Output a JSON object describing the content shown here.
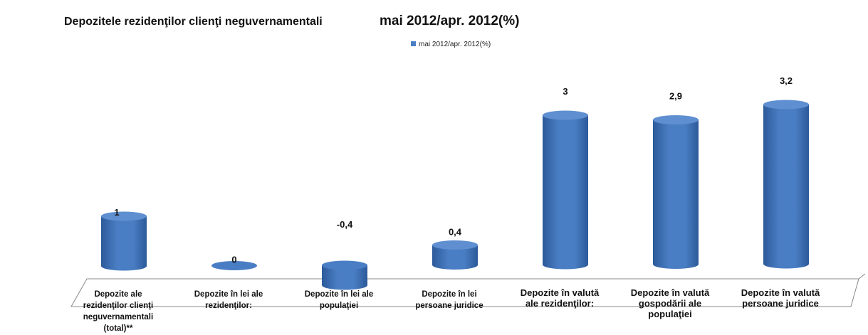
{
  "colors": {
    "bar_fill": "#4a7ec4",
    "bar_dark": "#2c5a9a",
    "bar_top": "#5f8fd0",
    "floor_line": "#888888"
  },
  "chart_data": {
    "type": "bar",
    "title": "Depozitele rezidenţilor clienţi neguvernamentali",
    "subtitle": "mai 2012/apr. 2012(%)",
    "legend_position": "top-center",
    "grid": false,
    "ylim": [
      -0.5,
      3.5
    ],
    "categories": [
      "Depozite ale rezidenţilor clienţi neguvernamentali (total)**",
      "Depozite în lei ale rezidenţilor:",
      "Depozite în lei ale populaţiei",
      "Depozite în lei persoane juridice",
      "Depozite în valută ale rezidenţilor:",
      "Depozite în valută gospodării ale populaţiei",
      "Depozite în valută persoane juridice"
    ],
    "series": [
      {
        "name": "mai 2012/apr. 2012(%)",
        "values": [
          1,
          0,
          -0.4,
          0.4,
          3,
          2.9,
          3.2
        ]
      }
    ],
    "data_labels": [
      "1",
      "0",
      "-0,4",
      "0,4",
      "3",
      "2,9",
      "3,2"
    ]
  }
}
